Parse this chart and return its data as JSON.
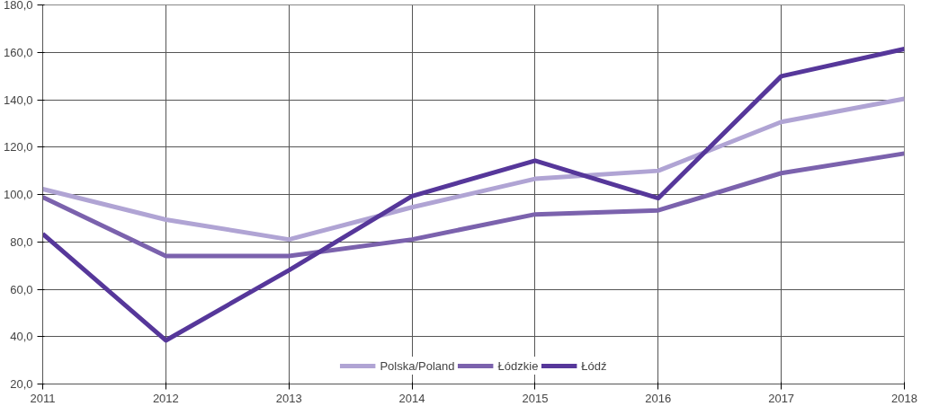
{
  "chart_data": {
    "type": "line",
    "categories": [
      "2011",
      "2012",
      "2013",
      "2014",
      "2015",
      "2016",
      "2017",
      "2018"
    ],
    "series": [
      {
        "name": "Polska/Poland",
        "color": "#b0a4d4",
        "values": [
          102.3,
          89.4,
          81,
          94.6,
          106.6,
          110,
          130.6,
          140.4
        ]
      },
      {
        "name": "Łódzkie",
        "color": "#7b62ad",
        "values": [
          98.9,
          74,
          74,
          81,
          91.6,
          93.3,
          109,
          117.3
        ]
      },
      {
        "name": "Łódź",
        "color": "#56379a",
        "values": [
          83.4,
          38.4,
          68,
          99.3,
          114.3,
          98.4,
          149.9,
          161.4
        ]
      }
    ],
    "ylim": [
      20,
      180
    ],
    "yticks": [
      {
        "value": 20,
        "label": "20,0"
      },
      {
        "value": 40,
        "label": "40,0"
      },
      {
        "value": 60,
        "label": "60,0"
      },
      {
        "value": 80,
        "label": "80,0"
      },
      {
        "value": 100,
        "label": "100,0"
      },
      {
        "value": 120,
        "label": "120,0"
      },
      {
        "value": 140,
        "label": "140,0"
      },
      {
        "value": 160,
        "label": "160,0"
      },
      {
        "value": 180,
        "label": "180,0"
      }
    ],
    "grid": true,
    "legend": "bottom",
    "marker": "none",
    "line_style": "solid"
  }
}
